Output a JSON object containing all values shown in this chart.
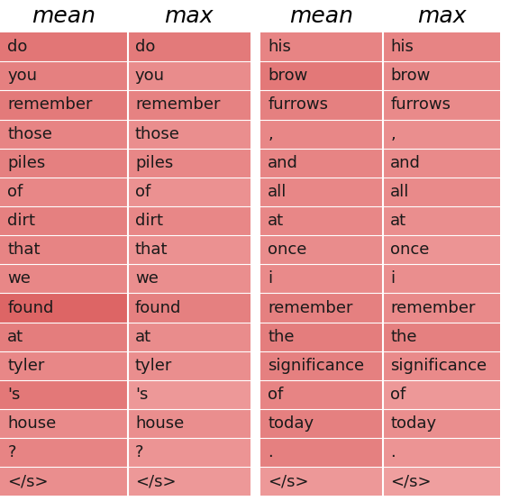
{
  "left_table": {
    "words_mean": [
      "do",
      "you",
      "remember",
      "those",
      "piles",
      "of",
      "dirt",
      "that",
      "we",
      "found",
      "at",
      "tyler",
      "'s",
      "house",
      "?",
      "</s>"
    ],
    "words_max": [
      "do",
      "you",
      "remember",
      "those",
      "piles",
      "of",
      "dirt",
      "that",
      "we",
      "found",
      "at",
      "tyler",
      "'s",
      "house",
      "?",
      "</s>"
    ],
    "colors_mean": [
      0.72,
      0.62,
      0.68,
      0.58,
      0.62,
      0.55,
      0.62,
      0.58,
      0.55,
      0.88,
      0.65,
      0.55,
      0.7,
      0.52,
      0.58,
      0.48
    ],
    "colors_max": [
      0.68,
      0.5,
      0.6,
      0.48,
      0.55,
      0.45,
      0.55,
      0.45,
      0.48,
      0.62,
      0.5,
      0.48,
      0.38,
      0.48,
      0.42,
      0.38
    ]
  },
  "right_table": {
    "words_mean": [
      "his",
      "brow",
      "furrows",
      ",",
      "and",
      "all",
      "at",
      "once",
      "i",
      "remember",
      "the",
      "significance",
      "of",
      "today",
      ".",
      "</s>"
    ],
    "words_max": [
      "his",
      "brow",
      "furrows",
      ",",
      "and",
      "all",
      "at",
      "once",
      "i",
      "remember",
      "the",
      "significance",
      "of",
      "today",
      ".",
      "</s>"
    ],
    "colors_mean": [
      0.58,
      0.7,
      0.62,
      0.55,
      0.58,
      0.55,
      0.55,
      0.5,
      0.52,
      0.62,
      0.65,
      0.62,
      0.58,
      0.62,
      0.62,
      0.38
    ],
    "colors_max": [
      0.58,
      0.52,
      0.52,
      0.48,
      0.52,
      0.52,
      0.48,
      0.42,
      0.48,
      0.52,
      0.62,
      0.52,
      0.38,
      0.48,
      0.42,
      0.32
    ]
  },
  "header_labels": [
    "mean",
    "max",
    "mean",
    "max"
  ],
  "bg_color": "#ffffff",
  "text_color": "#1a1a1a",
  "base_red_dark": [
    0.85,
    0.35,
    0.35
  ],
  "base_red_light": [
    0.98,
    0.75,
    0.75
  ],
  "header_fontsize": 18,
  "cell_fontsize": 13
}
